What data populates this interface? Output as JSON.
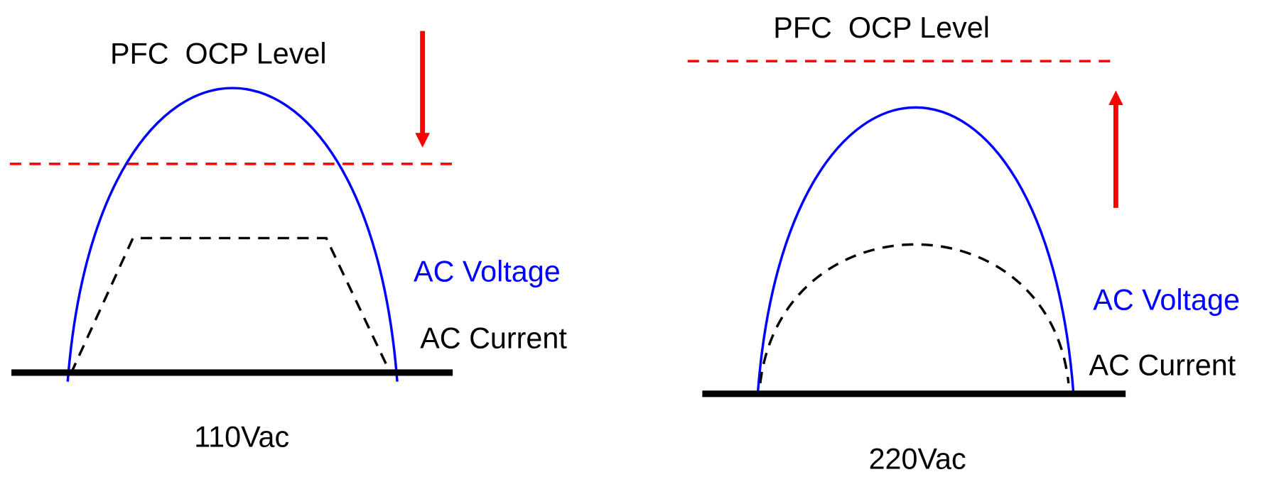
{
  "colors": {
    "voltage": "#0000ff",
    "current": "#000000",
    "ocp_level": "#ff0000",
    "arrow": "#ff0000",
    "baseline": "#000000"
  },
  "panels": [
    {
      "title": "PFC  OCP Level",
      "voltage_label": "AC Voltage",
      "current_label": "AC Current",
      "caption": "110Vac",
      "arrow_direction": "down",
      "current_shape": "clipped-trapezoid"
    },
    {
      "title": "PFC  OCP Level",
      "voltage_label": "AC Voltage",
      "current_label": "AC Current",
      "caption": "220Vac",
      "arrow_direction": "up",
      "current_shape": "sinusoidal"
    }
  ]
}
